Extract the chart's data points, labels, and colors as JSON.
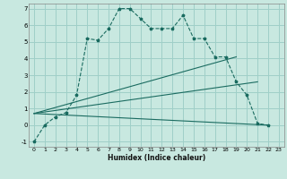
{
  "title": "",
  "xlabel": "Humidex (Indice chaleur)",
  "background_color": "#c8e8e0",
  "grid_color": "#9fcfc8",
  "line_color": "#1a6b60",
  "xlim": [
    -0.5,
    23.5
  ],
  "ylim": [
    -1.3,
    7.3
  ],
  "xticks": [
    0,
    1,
    2,
    3,
    4,
    5,
    6,
    7,
    8,
    9,
    10,
    11,
    12,
    13,
    14,
    15,
    16,
    17,
    18,
    19,
    20,
    21,
    22,
    23
  ],
  "yticks": [
    -1,
    0,
    1,
    2,
    3,
    4,
    5,
    6,
    7
  ],
  "series": [
    {
      "x": [
        0,
        1,
        2,
        3,
        4,
        5,
        6,
        7,
        8,
        9,
        10,
        11,
        12,
        13,
        14,
        15,
        16,
        17,
        18,
        19,
        20,
        21,
        22
      ],
      "y": [
        -1,
        0,
        0.5,
        0.75,
        1.8,
        5.2,
        5.1,
        5.8,
        7.0,
        7.0,
        6.4,
        5.8,
        5.8,
        5.8,
        6.6,
        5.2,
        5.2,
        4.1,
        4.1,
        2.6,
        1.8,
        0.1,
        0.0
      ],
      "marker": true,
      "linestyle": "--"
    },
    {
      "x": [
        0,
        19
      ],
      "y": [
        0.7,
        4.1
      ],
      "marker": false,
      "linestyle": "-"
    },
    {
      "x": [
        0,
        21
      ],
      "y": [
        0.7,
        2.6
      ],
      "marker": false,
      "linestyle": "-"
    },
    {
      "x": [
        0,
        22
      ],
      "y": [
        0.7,
        0.0
      ],
      "marker": false,
      "linestyle": "-"
    }
  ]
}
